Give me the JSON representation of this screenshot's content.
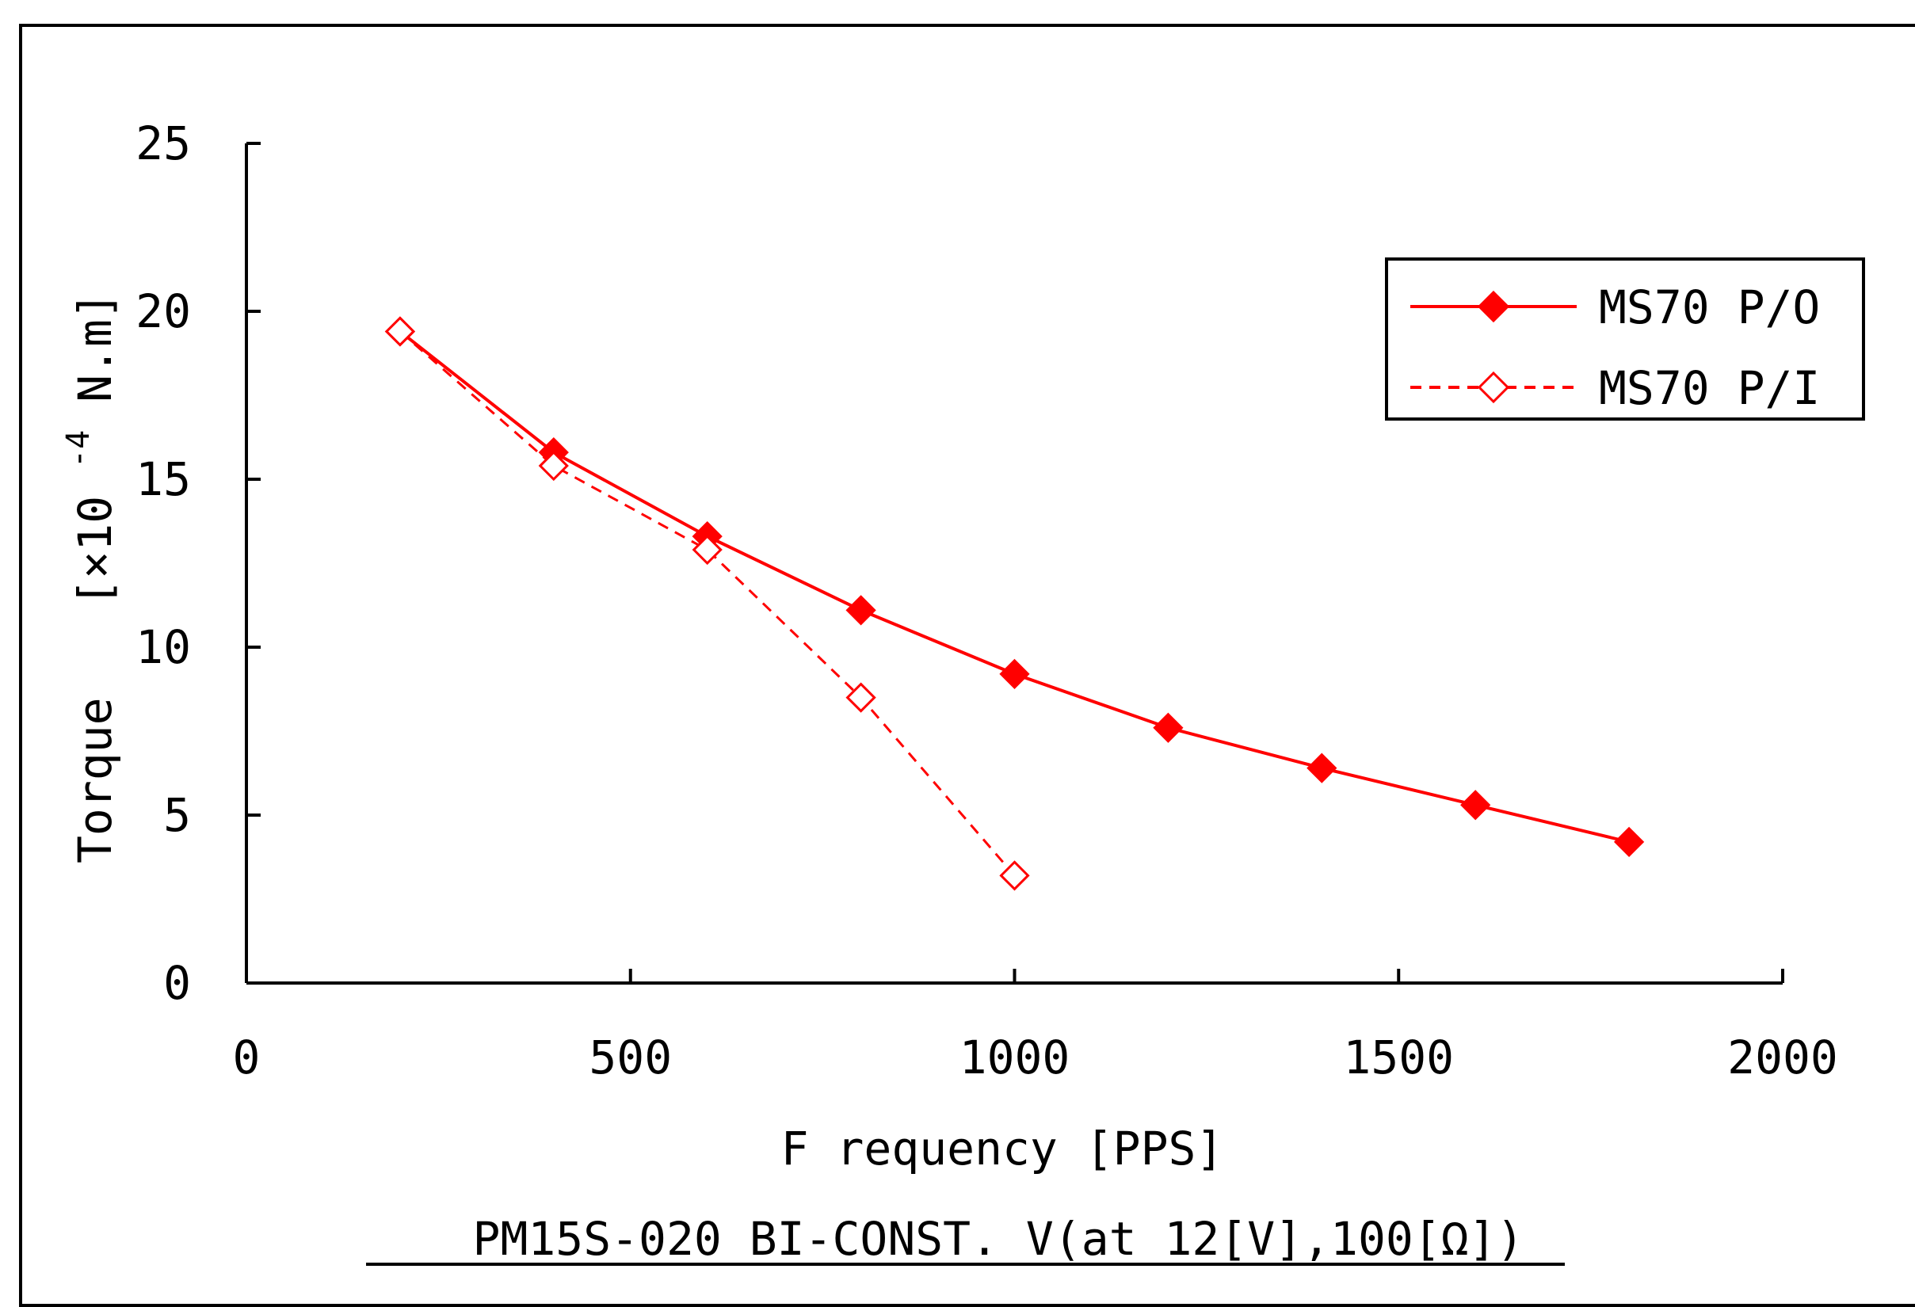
{
  "chart_data": {
    "type": "line",
    "xlabel": "F requency [PPS]",
    "ylabel_main": "Torque",
    "ylabel_unit_prefix": "[×10",
    "ylabel_exponent": "-4",
    "ylabel_unit_suffix": " N.m]",
    "footer": "PM15S-020 BI-CONST. V(at 12[V],100[Ω])",
    "xlim": [
      0,
      2000
    ],
    "ylim": [
      0,
      25
    ],
    "xticks": [
      0,
      500,
      1000,
      1500,
      2000
    ],
    "yticks": [
      0,
      5,
      10,
      15,
      20,
      25
    ],
    "grid": false,
    "legend_position": "top-right",
    "series": [
      {
        "name": "MS70 P/O",
        "color": "#ff0000",
        "style": "solid",
        "marker": "filled-diamond",
        "x": [
          200,
          400,
          600,
          800,
          1000,
          1200,
          1400,
          1600,
          1800
        ],
        "y": [
          19.4,
          15.8,
          13.3,
          11.1,
          9.2,
          7.6,
          6.4,
          5.3,
          4.2
        ]
      },
      {
        "name": "MS70 P/I",
        "color": "#ff0000",
        "style": "dashed",
        "marker": "open-diamond",
        "x": [
          200,
          400,
          600,
          800,
          1000
        ],
        "y": [
          19.4,
          15.4,
          12.9,
          8.5,
          3.2
        ]
      }
    ]
  }
}
